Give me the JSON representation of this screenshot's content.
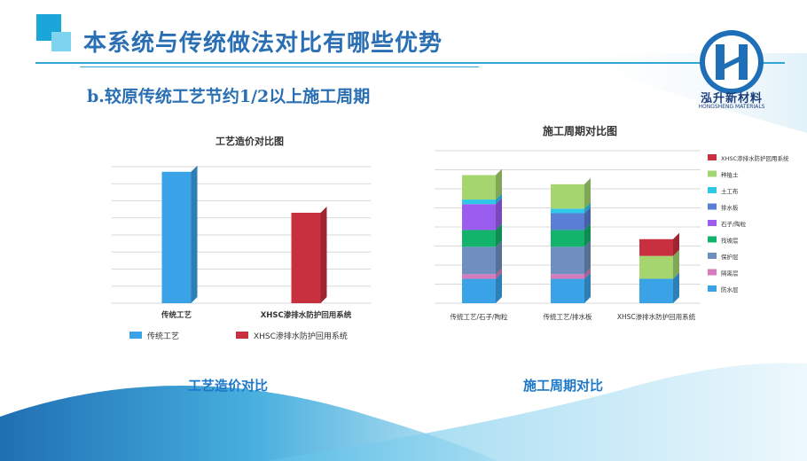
{
  "header": {
    "title": "本系统与传统做法对比有哪些优势",
    "subtitle": "b.较原传统工艺节约1/2以上施工周期"
  },
  "logo": {
    "icon": "hs-logo-icon",
    "name": "泓升新材料",
    "name_en": "HONGSHENG MATERIALS"
  },
  "captions": {
    "left": "工艺造价对比",
    "right": "施工周期对比"
  },
  "colors": {
    "accent": "#1aa6d8",
    "title": "#2a6fb4",
    "caption": "#1e78c8"
  },
  "chart_data": [
    {
      "type": "bar",
      "title": "工艺造价对比图",
      "categories": [
        "传统工艺",
        "XHSC渗排水防护回用系统"
      ],
      "values": [
        77,
        53
      ],
      "colors": [
        "#3aa3e8",
        "#c8303f"
      ],
      "legend": [
        "传统工艺",
        "XHSC渗排水防护回用系统"
      ],
      "legend_position": "bottom",
      "ylim": [
        0,
        80
      ],
      "grid": true,
      "style": "3d"
    },
    {
      "type": "bar",
      "stacked": true,
      "title": "施工周期对比图",
      "categories": [
        "传统工艺/石子/陶粒",
        "传统工艺/排水板",
        "XHSC渗排水防护回用系统"
      ],
      "ylim": [
        0,
        100
      ],
      "grid": true,
      "legend_position": "right",
      "style": "3d",
      "series": [
        {
          "name": "防水层",
          "color": "#3aa3e8",
          "values": [
            16,
            16,
            16
          ]
        },
        {
          "name": "隔离层",
          "color": "#d87bbd",
          "values": [
            3,
            3,
            0
          ]
        },
        {
          "name": "保护层",
          "color": "#6f8fc0",
          "values": [
            18,
            18,
            0
          ]
        },
        {
          "name": "找坡层",
          "color": "#12b36a",
          "values": [
            11,
            11,
            0
          ]
        },
        {
          "name": "石子/陶粒",
          "color": "#9b5cf0",
          "values": [
            17,
            0,
            0
          ]
        },
        {
          "name": "排水板",
          "color": "#5a7ed4",
          "values": [
            0,
            11,
            0
          ]
        },
        {
          "name": "土工布",
          "color": "#2fc8e8",
          "values": [
            3,
            3,
            0
          ]
        },
        {
          "name": "种植土",
          "color": "#a5d56f",
          "values": [
            16,
            16,
            15
          ]
        },
        {
          "name": "XHSC渗排水防护回用系统",
          "color": "#c8303f",
          "values": [
            0,
            0,
            11
          ]
        }
      ]
    }
  ]
}
